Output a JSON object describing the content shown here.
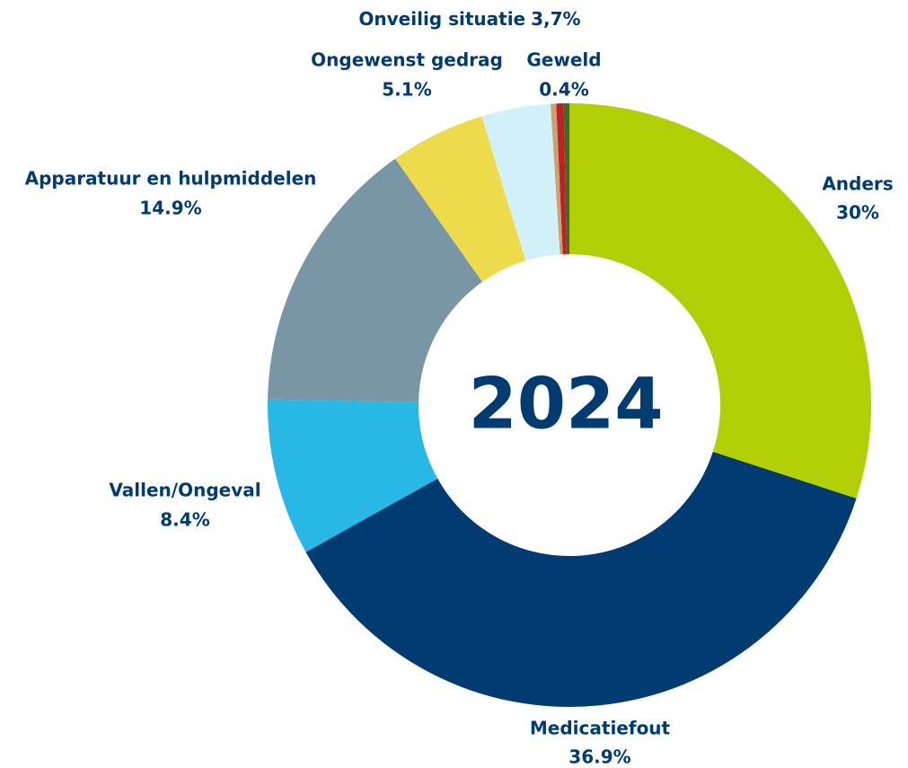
{
  "chart_data": {
    "type": "donut",
    "center_label": "2024",
    "categories": [
      "Anders",
      "Medicatiefout",
      "Vallen/Ongeval",
      "Apparatuur en hulpmiddelen",
      "Ongewenst gedrag",
      "Onveilig situatie",
      null,
      "Geweld",
      null
    ],
    "values": [
      30,
      36.9,
      8.4,
      14.9,
      5.1,
      3.7,
      0.3,
      0.4,
      0.3
    ],
    "value_labels": [
      "30%",
      "36.9%",
      "8.4%",
      "14.9%",
      "5.1%",
      "3,7%",
      null,
      "0.4%",
      null
    ],
    "colors": [
      "#b2cf06",
      "#003b71",
      "#27b8e6",
      "#7896a6",
      "#eedb4c",
      "#d2f0fa",
      "#c8a36c",
      "#c0202a",
      "#3f6b2a"
    ]
  }
}
